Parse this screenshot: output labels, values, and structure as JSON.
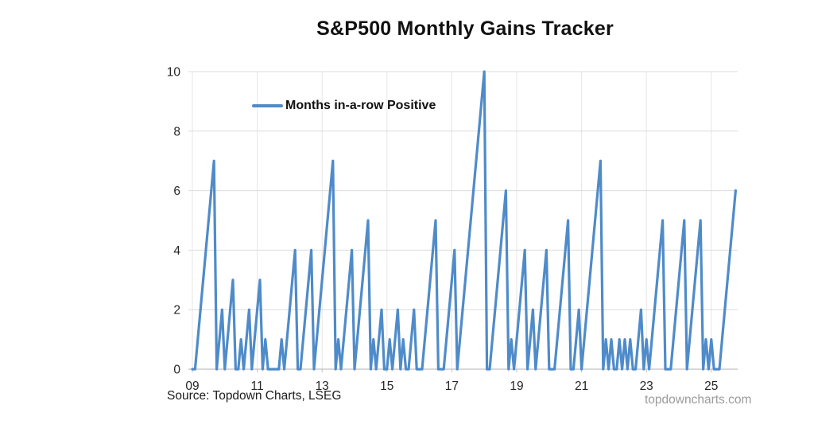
{
  "title": "S&P500 Monthly Gains Tracker",
  "legend": {
    "label": "Months in-a-row Positive"
  },
  "source": "Source: Topdown Charts, LSEG",
  "watermark": "topdowncharts.com",
  "colors": {
    "line": "#4F8BC9",
    "gridline": "#DCDCDC",
    "vgridline": "#E6E6E6",
    "axis": "#C0C0C0",
    "tick_label": "#262626"
  },
  "chart_data": {
    "type": "line",
    "title": "S&P500 Monthly Gains Tracker",
    "series_name": "Months in-a-row Positive",
    "frequency": "monthly",
    "x_start": "2009-01",
    "x_end": "2025-10",
    "start_year": 2009,
    "ylim": [
      0,
      10
    ],
    "yticks": [
      0,
      2,
      4,
      6,
      8,
      10
    ],
    "xtick_labels": [
      "09",
      "11",
      "13",
      "15",
      "17",
      "19",
      "21",
      "23",
      "25"
    ],
    "xtick_years": [
      2009,
      2011,
      2013,
      2015,
      2017,
      2019,
      2021,
      2023,
      2025
    ],
    "grid": true,
    "legend_position": "top-left-inside",
    "values": [
      0,
      0,
      1,
      2,
      3,
      4,
      5,
      6,
      7,
      0,
      1,
      2,
      0,
      1,
      2,
      3,
      0,
      0,
      1,
      0,
      1,
      2,
      0,
      1,
      2,
      3,
      0,
      1,
      0,
      0,
      0,
      0,
      0,
      1,
      0,
      1,
      2,
      3,
      4,
      0,
      0,
      1,
      2,
      3,
      4,
      0,
      1,
      2,
      3,
      4,
      5,
      6,
      7,
      0,
      1,
      0,
      1,
      2,
      3,
      4,
      0,
      1,
      2,
      3,
      4,
      5,
      0,
      1,
      0,
      1,
      2,
      0,
      0,
      1,
      0,
      1,
      2,
      0,
      1,
      0,
      0,
      1,
      2,
      0,
      0,
      0,
      1,
      2,
      3,
      4,
      5,
      0,
      0,
      0,
      1,
      2,
      3,
      4,
      0,
      1,
      2,
      3,
      4,
      5,
      6,
      7,
      8,
      9,
      10,
      0,
      0,
      1,
      2,
      3,
      4,
      5,
      6,
      0,
      1,
      0,
      1,
      2,
      3,
      4,
      0,
      1,
      2,
      0,
      1,
      2,
      3,
      4,
      0,
      0,
      0,
      1,
      2,
      3,
      4,
      5,
      0,
      0,
      1,
      2,
      0,
      1,
      2,
      3,
      4,
      5,
      6,
      7,
      0,
      1,
      0,
      1,
      0,
      0,
      1,
      0,
      1,
      0,
      1,
      0,
      0,
      1,
      2,
      0,
      1,
      0,
      1,
      2,
      3,
      4,
      5,
      0,
      0,
      0,
      1,
      2,
      3,
      4,
      5,
      0,
      1,
      2,
      3,
      4,
      5,
      0,
      1,
      0,
      1,
      0,
      0,
      0,
      1,
      2,
      3,
      4,
      5,
      6
    ]
  }
}
